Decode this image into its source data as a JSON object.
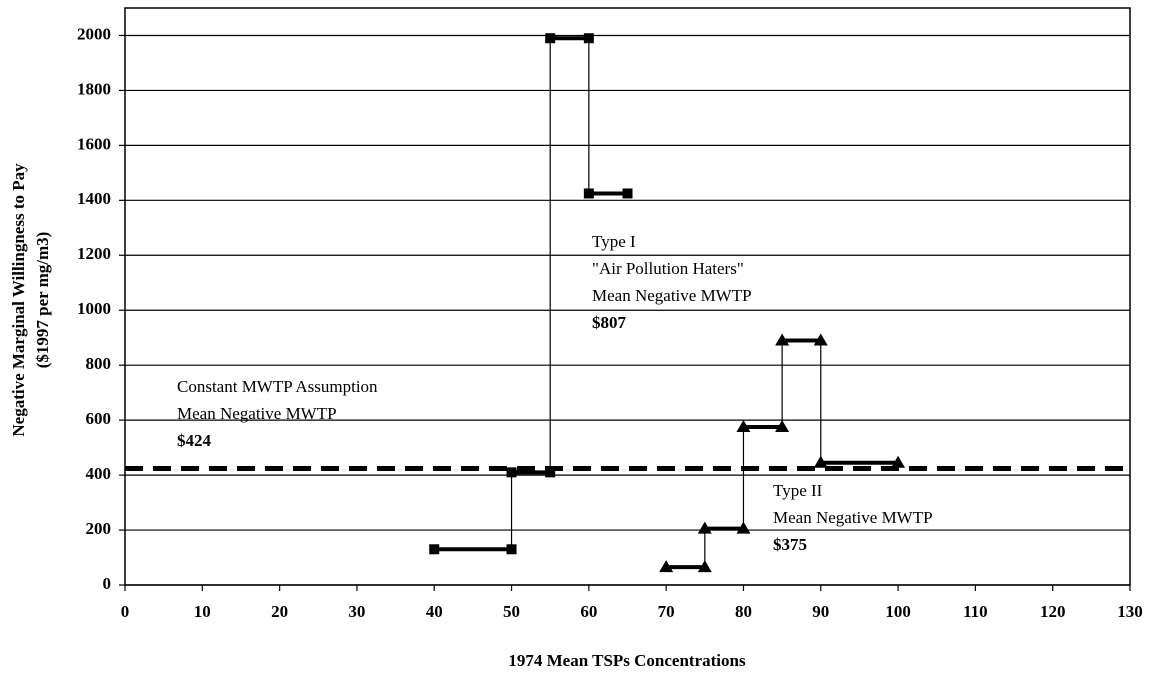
{
  "chart_data": {
    "type": "step-line",
    "x_label": "1974 Mean TSPs Concentrations",
    "y_label": [
      "Negative Marginal Willingness to Pay",
      "($1997 per mg/m3)"
    ],
    "xlim": [
      0,
      130
    ],
    "xticks": [
      0,
      10,
      20,
      30,
      40,
      50,
      60,
      70,
      80,
      90,
      100,
      110,
      120,
      130
    ],
    "ylim": [
      0,
      2100
    ],
    "yticks": [
      0,
      200,
      400,
      600,
      800,
      1000,
      1200,
      1400,
      1600,
      1800,
      2000
    ],
    "grid": true,
    "series": [
      {
        "color": "#000000",
        "marker": "square",
        "step": true,
        "x": [
          40,
          50,
          50,
          55,
          55,
          60,
          60,
          65
        ],
        "values": [
          130,
          130,
          410,
          410,
          1990,
          1990,
          1425,
          1425
        ]
      },
      {
        "color": "#000000",
        "marker": "triangle",
        "step": true,
        "x": [
          70,
          75,
          75,
          80,
          80,
          85,
          85,
          90,
          90,
          100
        ],
        "values": [
          65,
          65,
          205,
          205,
          575,
          575,
          890,
          890,
          445,
          445
        ]
      },
      {
        "color": "#000000",
        "marker": "none",
        "step": false,
        "dashed": true,
        "x": [
          0,
          130
        ],
        "values": [
          424,
          424
        ]
      }
    ],
    "annotations": [
      {
        "lines": [
          "Type I",
          "\"Air Pollution Haters\"",
          "Mean Negative MWTP",
          "$807"
        ]
      },
      {
        "lines": [
          "Constant MWTP Assumption",
          "Mean Negative MWTP",
          "$424"
        ]
      },
      {
        "lines": [
          "Type II",
          "Mean Negative MWTP",
          "$375"
        ]
      }
    ]
  }
}
